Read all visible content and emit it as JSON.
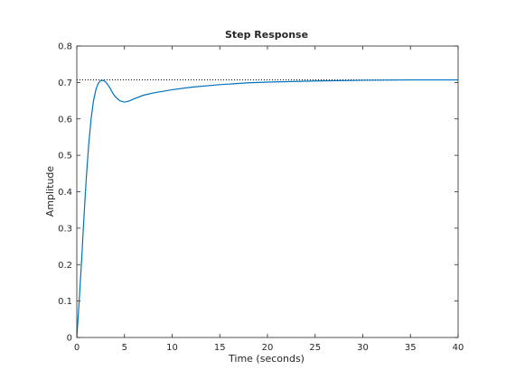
{
  "chart_data": {
    "type": "line",
    "title": "Step Response",
    "xlabel": "Time (seconds)",
    "ylabel": "Amplitude",
    "xlim": [
      0,
      40
    ],
    "ylim": [
      0,
      0.8
    ],
    "xticks": [
      0,
      5,
      10,
      15,
      20,
      25,
      30,
      35,
      40
    ],
    "yticks": [
      0,
      0.1,
      0.2,
      0.3,
      0.4,
      0.5,
      0.6,
      0.7,
      0.8
    ],
    "xtick_labels": [
      "0",
      "5",
      "10",
      "15",
      "20",
      "25",
      "30",
      "35",
      "40"
    ],
    "ytick_labels": [
      "0",
      "0.1",
      "0.2",
      "0.3",
      "0.4",
      "0.5",
      "0.6",
      "0.7",
      "0.8"
    ],
    "grid": false,
    "steady_state": 0.707,
    "series": [
      {
        "color": "#0072bd",
        "x": [
          0,
          0.25,
          0.5,
          0.75,
          1.0,
          1.25,
          1.5,
          1.75,
          2.0,
          2.25,
          2.5,
          2.75,
          3.0,
          3.25,
          3.5,
          3.75,
          4.0,
          4.5,
          5.0,
          5.5,
          6.0,
          7.0,
          8.0,
          10.0,
          12.0,
          15.0,
          18.0,
          20.0,
          25.0,
          30.0,
          35.0,
          40.0
        ],
        "y": [
          0,
          0.1,
          0.21,
          0.33,
          0.44,
          0.53,
          0.6,
          0.65,
          0.68,
          0.698,
          0.705,
          0.706,
          0.702,
          0.694,
          0.684,
          0.672,
          0.662,
          0.65,
          0.646,
          0.649,
          0.655,
          0.665,
          0.671,
          0.68,
          0.687,
          0.694,
          0.699,
          0.701,
          0.704,
          0.706,
          0.707,
          0.707
        ]
      }
    ]
  }
}
